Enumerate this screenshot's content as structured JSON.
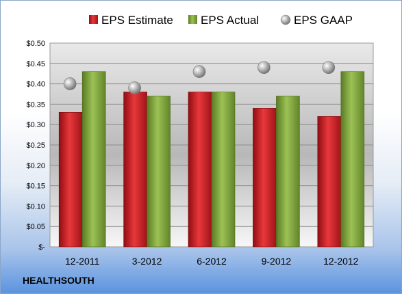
{
  "company": "HEALTHSOUTH",
  "chart_data": {
    "type": "bar",
    "categories": [
      "12-2011",
      "3-2012",
      "6-2012",
      "9-2012",
      "12-2012"
    ],
    "series": [
      {
        "name": "EPS Estimate",
        "kind": "bar",
        "color": "#cc1f24",
        "values": [
          0.33,
          0.38,
          0.38,
          0.34,
          0.32
        ]
      },
      {
        "name": "EPS Actual",
        "kind": "bar",
        "color": "#7fa63b",
        "values": [
          0.43,
          0.37,
          0.38,
          0.37,
          0.43
        ]
      },
      {
        "name": "EPS GAAP",
        "kind": "marker",
        "color": "#a6a6a6",
        "values": [
          0.4,
          0.39,
          0.43,
          0.44,
          0.44
        ]
      }
    ],
    "y_ticks": [
      "$-",
      "$0.05",
      "$0.10",
      "$0.15",
      "$0.20",
      "$0.25",
      "$0.30",
      "$0.35",
      "$0.40",
      "$0.45",
      "$0.50"
    ],
    "ylim": [
      0,
      0.5
    ],
    "grid": true,
    "legend_position": "top"
  }
}
